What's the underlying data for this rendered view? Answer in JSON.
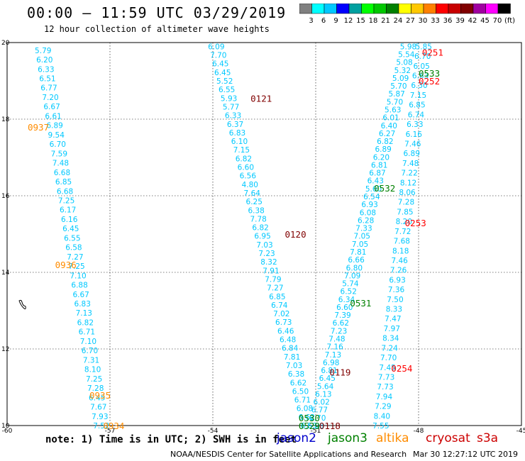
{
  "title": "00:00 – 11:59 UTC 03/29/2019",
  "subtitle": "12 hour collection of altimeter wave heights",
  "colorbar": {
    "colors": [
      "#808080",
      "#00ffff",
      "#00c8ff",
      "#0000ff",
      "#00a0a0",
      "#00ff00",
      "#00c800",
      "#008000",
      "#ffff00",
      "#ffc800",
      "#ff8000",
      "#ff0000",
      "#c80000",
      "#800000",
      "#a000a0",
      "#ff00ff",
      "#000000"
    ],
    "labels": [
      "3",
      "6",
      "9",
      "12",
      "15",
      "18",
      "21",
      "24",
      "27",
      "30",
      "33",
      "36",
      "39",
      "42",
      "45",
      "70",
      "(ft)"
    ]
  },
  "axes": {
    "x_ticks": [
      "-60",
      "-57",
      "-54",
      "-51",
      "-48",
      "-45"
    ],
    "y_ticks": [
      "20",
      "18",
      "16",
      "14",
      "12",
      "10"
    ]
  },
  "passes": [
    {
      "label": "0937",
      "color": "#ff8c00",
      "lon": -59.4,
      "lat": 17.8
    },
    {
      "label": "0936",
      "color": "#ff8c00",
      "lon": -58.6,
      "lat": 14.2
    },
    {
      "label": "0935",
      "color": "#ff8c00",
      "lon": -57.6,
      "lat": 10.8
    },
    {
      "label": "0934",
      "color": "#ff8c00",
      "lon": -57.2,
      "lat": 10.0
    },
    {
      "label": "0121",
      "color": "#800000",
      "lon": -52.9,
      "lat": 18.55
    },
    {
      "label": "0120",
      "color": "#800000",
      "lon": -51.9,
      "lat": 15.0
    },
    {
      "label": "0119",
      "color": "#800000",
      "lon": -50.6,
      "lat": 11.4
    },
    {
      "label": "0118",
      "color": "#800000",
      "lon": -50.9,
      "lat": 10.0
    },
    {
      "label": "0533",
      "color": "#008000",
      "lon": -48.0,
      "lat": 19.2
    },
    {
      "label": "0532",
      "color": "#008000",
      "lon": -49.3,
      "lat": 16.2
    },
    {
      "label": "0531",
      "color": "#008000",
      "lon": -50.0,
      "lat": 13.2
    },
    {
      "label": "0530",
      "color": "#008000",
      "lon": -51.5,
      "lat": 10.2
    },
    {
      "label": "0529",
      "color": "#008000",
      "lon": -51.5,
      "lat": 10.0
    },
    {
      "label": "0251",
      "color": "#ff0000",
      "lon": -47.9,
      "lat": 19.75
    },
    {
      "label": "0252",
      "color": "#ff0000",
      "lon": -48.0,
      "lat": 19.0
    },
    {
      "label": "0253",
      "color": "#ff0000",
      "lon": -48.4,
      "lat": 15.3
    },
    {
      "label": "0254",
      "color": "#ff0000",
      "lon": -48.8,
      "lat": 11.5
    }
  ],
  "tracks": [
    {
      "name": "track-0937",
      "color": "#00c8ff",
      "lon0": -58.95,
      "lat0": 19.8,
      "lon1": -57.25,
      "lat1": 10.0,
      "values": [
        "5.79",
        "6.20",
        "6.33",
        "6.51",
        "6.77",
        "7.20",
        "6.67",
        "6.61",
        "6.89",
        "9.54",
        "6.70",
        "7.59",
        "7.48",
        "6.68",
        "6.85",
        "6.68",
        "7.25",
        "6.17",
        "6.16",
        "6.45",
        "6.55",
        "6.58",
        "7.27",
        "7.25",
        "7.10",
        "6.88",
        "6.67",
        "6.83",
        "7.13",
        "6.82",
        "6.71",
        "7.10",
        "6.70",
        "7.31",
        "8.10",
        "7.25",
        "7.28",
        "6.45",
        "7.67",
        "7.93",
        "7.52"
      ]
    },
    {
      "name": "track-0121",
      "color": "#00c8ff",
      "lon0": -53.9,
      "lat0": 19.9,
      "lon1": -51.2,
      "lat1": 10.0,
      "values": [
        "6.09",
        "7.70",
        "6.45",
        "6.45",
        "5.52",
        "6.55",
        "5.93",
        "5.77",
        "6.33",
        "6.37",
        "6.83",
        "6.10",
        "7.15",
        "6.82",
        "6.60",
        "6.56",
        "4.80",
        "7.64",
        "6.25",
        "6.38",
        "7.78",
        "6.82",
        "6.95",
        "7.03",
        "7.23",
        "8.32",
        "7.91",
        "7.79",
        "7.27",
        "6.85",
        "6.74",
        "7.02",
        "6.73",
        "6.46",
        "6.48",
        "6.84",
        "7.81",
        "7.03",
        "6.38",
        "6.62",
        "6.50",
        "6.71",
        "6.08",
        "6.62",
        "6.53"
      ]
    },
    {
      "name": "track-0532",
      "color": "#00c8ff",
      "lon0": -48.3,
      "lat0": 19.9,
      "lon1": -51.0,
      "lat1": 10.0,
      "values": [
        "5.98",
        "5.54",
        "5.08",
        "5.32",
        "5.09",
        "5.70",
        "5.87",
        "5.70",
        "5.63",
        "6.01",
        "6.40",
        "6.27",
        "6.82",
        "6.89",
        "6.20",
        "6.81",
        "6.87",
        "6.43",
        "5.60",
        "6.54",
        "6.93",
        "6.08",
        "6.28",
        "7.33",
        "7.05",
        "7.05",
        "7.81",
        "6.66",
        "6.80",
        "7.09",
        "5.74",
        "6.52",
        "6.34",
        "6.60",
        "7.39",
        "6.62",
        "7.23",
        "7.48",
        "7.16",
        "7.13",
        "6.98",
        "6.81",
        "6.45",
        "5.64",
        "6.13",
        "6.02",
        "6.77",
        "6.70",
        "6.08"
      ]
    },
    {
      "name": "track-0252",
      "color": "#00c8ff",
      "lon0": -47.85,
      "lat0": 19.9,
      "lon1": -49.1,
      "lat1": 10.0,
      "values": [
        "5.85",
        "6.70",
        "6.05",
        "6.63",
        "6.30",
        "7.15",
        "6.85",
        "6.74",
        "6.33",
        "6.16",
        "7.46",
        "6.89",
        "7.48",
        "7.22",
        "8.12",
        "8.06",
        "7.28",
        "7.85",
        "8.20",
        "7.72",
        "7.68",
        "8.18",
        "7.46",
        "7.26",
        "6.93",
        "7.36",
        "7.50",
        "8.33",
        "7.47",
        "7.97",
        "8.34",
        "7.24",
        "7.70",
        "7.45",
        "7.73",
        "7.73",
        "7.94",
        "7.29",
        "8.40",
        "7.55"
      ]
    }
  ],
  "note": "note: 1) Time is in UTC; 2) SWH is in feet",
  "satellites": [
    {
      "name": "jason2",
      "color": "#0000cc"
    },
    {
      "name": "jason3",
      "color": "#008000"
    },
    {
      "name": "altika",
      "color": "#ff8c00"
    },
    {
      "name": "cryosat",
      "color": "#cc0000"
    },
    {
      "name": "s3a",
      "color": "#cc0000"
    }
  ],
  "credit": "NOAA/NESDIS Center for Satellite Applications and Research",
  "stamp": "Mar 30 12:27:12 UTC 2019"
}
